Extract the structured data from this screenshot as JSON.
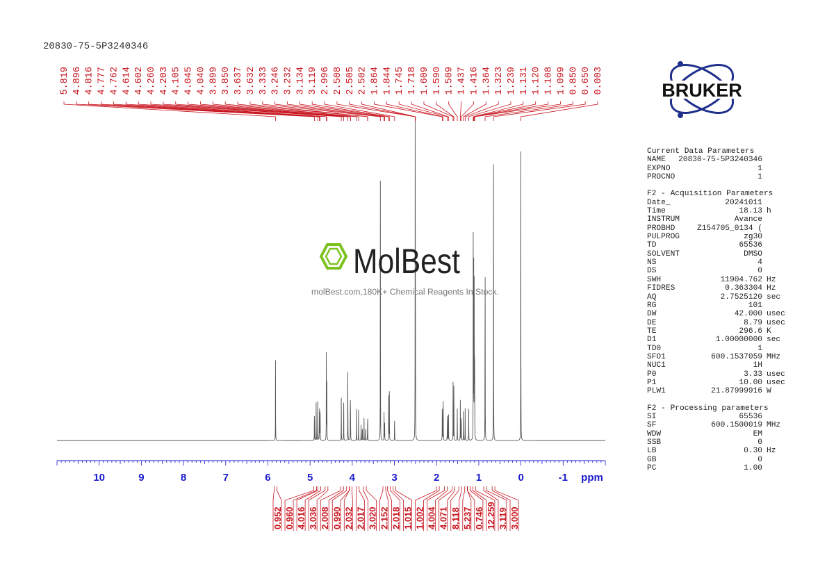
{
  "document": {
    "sample_name": "20830-75-5P3240346"
  },
  "chart_data": {
    "type": "line",
    "title": "",
    "xlabel": "ppm",
    "xlim": [
      11.0,
      -2.0
    ],
    "x_reversed": true,
    "x_ticks": [
      10,
      9,
      8,
      7,
      6,
      5,
      4,
      3,
      2,
      1,
      0,
      -1
    ],
    "grid": false,
    "line_color": "#555555",
    "annotation_color": "#c8141e",
    "axis_color": "#1a1acd",
    "peaks": [
      {
        "ppm": 5.819,
        "h": 0.29
      },
      {
        "ppm": 4.896,
        "h": 0.16
      },
      {
        "ppm": 4.855,
        "h": 0.15
      },
      {
        "ppm": 4.816,
        "h": 0.22
      },
      {
        "ppm": 4.777,
        "h": 0.21
      },
      {
        "ppm": 4.762,
        "h": 0.2
      },
      {
        "ppm": 4.614,
        "h": 0.36
      },
      {
        "ppm": 4.602,
        "h": 0.3
      },
      {
        "ppm": 4.26,
        "h": 0.19
      },
      {
        "ppm": 4.203,
        "h": 0.2
      },
      {
        "ppm": 4.105,
        "h": 0.35
      },
      {
        "ppm": 4.045,
        "h": 0.13
      },
      {
        "ppm": 4.04,
        "h": 0.13
      },
      {
        "ppm": 3.899,
        "h": 0.13
      },
      {
        "ppm": 3.85,
        "h": 0.11
      },
      {
        "ppm": 3.79,
        "h": 0.08
      },
      {
        "ppm": 3.76,
        "h": 0.08
      },
      {
        "ppm": 3.72,
        "h": 0.08
      },
      {
        "ppm": 3.68,
        "h": 0.08
      },
      {
        "ppm": 3.637,
        "h": 0.07
      },
      {
        "ppm": 3.632,
        "h": 0.07
      },
      {
        "ppm": 3.333,
        "h": 1.13
      },
      {
        "ppm": 3.246,
        "h": 0.1
      },
      {
        "ppm": 3.232,
        "h": 0.1
      },
      {
        "ppm": 3.134,
        "h": 0.21
      },
      {
        "ppm": 3.119,
        "h": 0.2
      },
      {
        "ppm": 2.996,
        "h": 0.11
      },
      {
        "ppm": 2.508,
        "h": 1.13
      },
      {
        "ppm": 2.505,
        "h": 0.5
      },
      {
        "ppm": 2.502,
        "h": 0.4
      },
      {
        "ppm": 1.864,
        "h": 0.2
      },
      {
        "ppm": 1.844,
        "h": 0.22
      },
      {
        "ppm": 1.745,
        "h": 0.17
      },
      {
        "ppm": 1.718,
        "h": 0.16
      },
      {
        "ppm": 1.609,
        "h": 0.22
      },
      {
        "ppm": 1.59,
        "h": 0.2
      },
      {
        "ppm": 1.509,
        "h": 0.15
      },
      {
        "ppm": 1.437,
        "h": 0.15
      },
      {
        "ppm": 1.416,
        "h": 0.14
      },
      {
        "ppm": 1.364,
        "h": 0.12
      },
      {
        "ppm": 1.323,
        "h": 0.12
      },
      {
        "ppm": 1.239,
        "h": 0.12
      },
      {
        "ppm": 1.131,
        "h": 0.78
      },
      {
        "ppm": 1.12,
        "h": 0.62
      },
      {
        "ppm": 1.108,
        "h": 0.6
      },
      {
        "ppm": 1.099,
        "h": 0.55
      },
      {
        "ppm": 0.85,
        "h": 0.98
      },
      {
        "ppm": 0.65,
        "h": 1.02
      },
      {
        "ppm": 0.003,
        "h": 1.13
      }
    ],
    "peak_labels": [
      "5.819",
      "4.896",
      "4.816",
      "4.777",
      "4.762",
      "4.614",
      "4.602",
      "4.260",
      "4.203",
      "4.105",
      "4.045",
      "4.040",
      "3.899",
      "3.850",
      "3.637",
      "3.632",
      "3.333",
      "3.246",
      "3.232",
      "3.134",
      "3.119",
      "2.996",
      "2.508",
      "2.505",
      "2.502",
      "1.864",
      "1.844",
      "1.745",
      "1.718",
      "1.609",
      "1.590",
      "1.509",
      "1.437",
      "1.416",
      "1.364",
      "1.323",
      "1.239",
      "1.131",
      "1.120",
      "1.108",
      "1.099",
      "0.850",
      "0.650",
      "0.003"
    ],
    "peak_label_ppm": [
      5.819,
      4.896,
      4.816,
      4.777,
      4.762,
      4.614,
      4.602,
      4.26,
      4.203,
      4.105,
      4.045,
      4.04,
      3.899,
      3.85,
      3.637,
      3.632,
      3.333,
      3.246,
      3.232,
      3.134,
      3.119,
      2.996,
      2.508,
      2.505,
      2.502,
      1.864,
      1.844,
      1.745,
      1.718,
      1.609,
      1.59,
      1.509,
      1.437,
      1.416,
      1.364,
      1.323,
      1.239,
      1.131,
      1.12,
      1.108,
      1.099,
      0.85,
      0.65,
      0.003
    ],
    "integrals": [
      {
        "value": "0.952",
        "ppm": 5.819
      },
      {
        "value": "0.960",
        "ppm": 4.88
      },
      {
        "value": "4.016",
        "ppm": 4.78
      },
      {
        "value": "3.036",
        "ppm": 4.61
      },
      {
        "value": "2.008",
        "ppm": 4.24
      },
      {
        "value": "0.990",
        "ppm": 4.1
      },
      {
        "value": "2.032",
        "ppm": 4.04
      },
      {
        "value": "2.017",
        "ppm": 3.87
      },
      {
        "value": "3.020",
        "ppm": 3.7
      },
      {
        "value": "2.152",
        "ppm": 3.24
      },
      {
        "value": "2.018",
        "ppm": 3.13
      },
      {
        "value": "1.015",
        "ppm": 3.0
      },
      {
        "value": "1.002",
        "ppm": 1.97
      },
      {
        "value": "4.004",
        "ppm": 1.78
      },
      {
        "value": "4.071",
        "ppm": 1.6
      },
      {
        "value": "8.118",
        "ppm": 1.44
      },
      {
        "value": "5.237",
        "ppm": 1.3
      },
      {
        "value": "0.746",
        "ppm": 1.24
      },
      {
        "value": "12.259",
        "ppm": 1.11
      },
      {
        "value": "3.119",
        "ppm": 0.85
      },
      {
        "value": "3.000",
        "ppm": 0.65
      }
    ]
  },
  "parameters": [
    {
      "title": "Current Data Parameters",
      "rows": [
        {
          "k": "NAME",
          "v": "20830-75-5P3240346",
          "u": ""
        },
        {
          "k": "EXPNO",
          "v": "1",
          "u": ""
        },
        {
          "k": "PROCNO",
          "v": "1",
          "u": ""
        }
      ]
    },
    {
      "title": "F2 - Acquisition Parameters",
      "rows": [
        {
          "k": "Date_",
          "v": "20241011",
          "u": ""
        },
        {
          "k": "Time",
          "v": "18.13",
          "u": "h"
        },
        {
          "k": "INSTRUM",
          "v": "Avance",
          "u": ""
        },
        {
          "k": "PROBHD",
          "v": "Z154705_0134 (",
          "u": ""
        },
        {
          "k": "PULPROG",
          "v": "zg30",
          "u": ""
        },
        {
          "k": "TD",
          "v": "65536",
          "u": ""
        },
        {
          "k": "SOLVENT",
          "v": "DMSO",
          "u": ""
        },
        {
          "k": "NS",
          "v": "4",
          "u": ""
        },
        {
          "k": "DS",
          "v": "0",
          "u": ""
        },
        {
          "k": "SWH",
          "v": "11904.762",
          "u": "Hz"
        },
        {
          "k": "FIDRES",
          "v": "0.363304",
          "u": "Hz"
        },
        {
          "k": "AQ",
          "v": "2.7525120",
          "u": "sec"
        },
        {
          "k": "RG",
          "v": "101",
          "u": ""
        },
        {
          "k": "DW",
          "v": "42.000",
          "u": "usec"
        },
        {
          "k": "DE",
          "v": "8.79",
          "u": "usec"
        },
        {
          "k": "TE",
          "v": "296.6",
          "u": "K"
        },
        {
          "k": "D1",
          "v": "1.00000000",
          "u": "sec"
        },
        {
          "k": "TD0",
          "v": "1",
          "u": ""
        },
        {
          "k": "SFO1",
          "v": "600.1537059",
          "u": "MHz"
        },
        {
          "k": "NUC1",
          "v": "1H",
          "u": ""
        },
        {
          "k": "P0",
          "v": "3.33",
          "u": "usec"
        },
        {
          "k": "P1",
          "v": "10.00",
          "u": "usec"
        },
        {
          "k": "PLW1",
          "v": "21.87999916",
          "u": "W"
        }
      ]
    },
    {
      "title": "F2 - Processing parameters",
      "rows": [
        {
          "k": "SI",
          "v": "65536",
          "u": ""
        },
        {
          "k": "SF",
          "v": "600.1500019",
          "u": "MHz"
        },
        {
          "k": "WDW",
          "v": "EM",
          "u": ""
        },
        {
          "k": "SSB",
          "v": "0",
          "u": ""
        },
        {
          "k": "LB",
          "v": "0.30",
          "u": "Hz"
        },
        {
          "k": "GB",
          "v": "0",
          "u": ""
        },
        {
          "k": "PC",
          "v": "1.00",
          "u": ""
        }
      ]
    }
  ],
  "logo": {
    "text": "BRUKER",
    "color": "#1e2f8c"
  },
  "watermark": {
    "brand": "MolBest",
    "tagline": "molBest.com,180K+ Chemical Reagents In Stock.",
    "hex_color": "#7cc21e"
  }
}
